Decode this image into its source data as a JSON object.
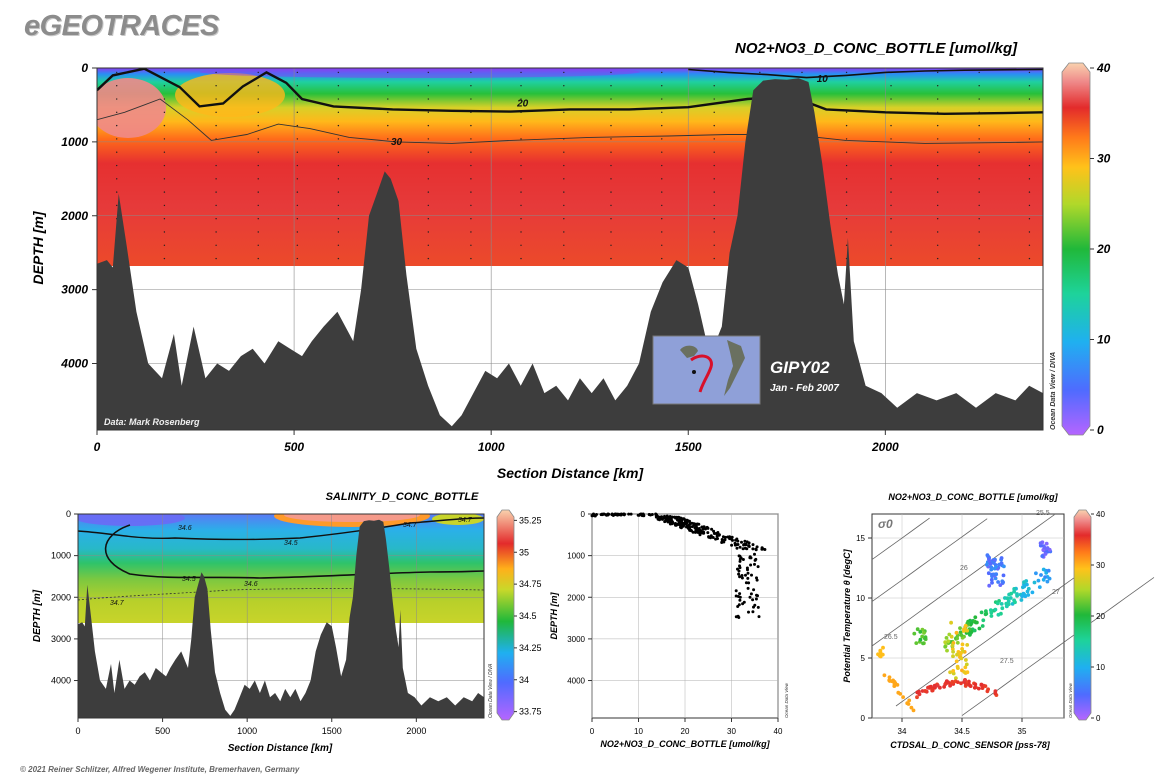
{
  "header": {
    "brand": "eGEOTRACES",
    "copyright": "© 2021 Reiner Schlitzer, Alfred Wegener Institute, Bremerhaven, Germany"
  },
  "chart_data": [
    {
      "id": "main-section",
      "type": "heatmap",
      "title": "NO2+NO3_D_CONC_BOTTLE [umol/kg]",
      "xlabel": "Section Distance [km]",
      "ylabel": "DEPTH [m]",
      "xlim": [
        0,
        2400
      ],
      "ylim": [
        4900,
        0
      ],
      "xticks": [
        "0",
        "500",
        "1000",
        "1500",
        "2000"
      ],
      "yticks": [
        "0",
        "1000",
        "2000",
        "3000",
        "4000"
      ],
      "colorbar": {
        "ticks": [
          "0",
          "10",
          "20",
          "30",
          "40"
        ],
        "range": [
          0,
          40
        ]
      },
      "contours": [
        {
          "level": "10",
          "label_x": 1840
        },
        {
          "level": "20",
          "label_x": 1080
        },
        {
          "level": "30",
          "label_x": 760
        }
      ],
      "credit": "Data: Mark Rosenberg",
      "watermark": "Ocean Data View / DIVA",
      "inset": {
        "name": "GIPY02",
        "dates": "Jan - Feb 2007"
      },
      "sampling_max_depth": 2700,
      "bathymetry": [
        [
          0,
          2650
        ],
        [
          25,
          2600
        ],
        [
          40,
          2700
        ],
        [
          55,
          1700
        ],
        [
          75,
          2400
        ],
        [
          100,
          3300
        ],
        [
          130,
          4000
        ],
        [
          165,
          4200
        ],
        [
          195,
          3600
        ],
        [
          215,
          4300
        ],
        [
          245,
          3500
        ],
        [
          275,
          4200
        ],
        [
          305,
          4000
        ],
        [
          335,
          4100
        ],
        [
          365,
          3900
        ],
        [
          395,
          3800
        ],
        [
          425,
          4000
        ],
        [
          460,
          3700
        ],
        [
          490,
          3800
        ],
        [
          520,
          3900
        ],
        [
          545,
          3700
        ],
        [
          575,
          3500
        ],
        [
          610,
          3300
        ],
        [
          650,
          3700
        ],
        [
          670,
          3000
        ],
        [
          690,
          2000
        ],
        [
          710,
          1700
        ],
        [
          730,
          1400
        ],
        [
          745,
          1500
        ],
        [
          765,
          1800
        ],
        [
          785,
          2800
        ],
        [
          810,
          3800
        ],
        [
          840,
          4300
        ],
        [
          870,
          4700
        ],
        [
          900,
          4850
        ],
        [
          925,
          4700
        ],
        [
          955,
          4400
        ],
        [
          985,
          4100
        ],
        [
          1015,
          4200
        ],
        [
          1045,
          4000
        ],
        [
          1075,
          4300
        ],
        [
          1105,
          4000
        ],
        [
          1135,
          4400
        ],
        [
          1165,
          4300
        ],
        [
          1195,
          4500
        ],
        [
          1225,
          4200
        ],
        [
          1255,
          4400
        ],
        [
          1285,
          4200
        ],
        [
          1315,
          4500
        ],
        [
          1345,
          4300
        ],
        [
          1375,
          4000
        ],
        [
          1405,
          3300
        ],
        [
          1435,
          2900
        ],
        [
          1470,
          2600
        ],
        [
          1500,
          2700
        ],
        [
          1525,
          3200
        ],
        [
          1555,
          3900
        ],
        [
          1585,
          3500
        ],
        [
          1605,
          2500
        ],
        [
          1625,
          2000
        ],
        [
          1645,
          1000
        ],
        [
          1665,
          300
        ],
        [
          1690,
          170
        ],
        [
          1720,
          150
        ],
        [
          1750,
          160
        ],
        [
          1780,
          140
        ],
        [
          1805,
          190
        ],
        [
          1820,
          600
        ],
        [
          1840,
          1300
        ],
        [
          1860,
          2100
        ],
        [
          1880,
          2800
        ],
        [
          1895,
          3200
        ],
        [
          1905,
          2300
        ],
        [
          1920,
          3700
        ],
        [
          1950,
          4300
        ],
        [
          1990,
          4400
        ],
        [
          2030,
          4600
        ],
        [
          2080,
          4400
        ],
        [
          2130,
          4500
        ],
        [
          2180,
          4400
        ],
        [
          2230,
          4600
        ],
        [
          2280,
          4400
        ],
        [
          2330,
          4500
        ],
        [
          2365,
          4300
        ],
        [
          2400,
          4400
        ]
      ]
    },
    {
      "id": "salinity-section",
      "type": "heatmap",
      "title": "SALINITY_D_CONC_BOTTLE",
      "xlabel": "Section Distance [km]",
      "ylabel": "DEPTH [m]",
      "xlim": [
        0,
        2400
      ],
      "ylim": [
        4900,
        0
      ],
      "xticks": [
        "0",
        "500",
        "1000",
        "1500",
        "2000"
      ],
      "yticks": [
        "0",
        "1000",
        "2000",
        "3000",
        "4000"
      ],
      "colorbar": {
        "ticks": [
          "33.75",
          "34",
          "34.25",
          "34.5",
          "34.75",
          "35",
          "35.25"
        ],
        "range": [
          33.7,
          35.3
        ]
      },
      "contour_labels": [
        "34.6",
        "34.7",
        "34.5",
        "34.7",
        "34.5",
        "34.6",
        "34.7"
      ],
      "watermark": "Ocean Data View / DIVA"
    },
    {
      "id": "profile",
      "type": "scatter",
      "xlabel": "NO2+NO3_D_CONC_BOTTLE [umol/kg]",
      "ylabel": "DEPTH [m]",
      "xlim": [
        0,
        40
      ],
      "ylim": [
        4900,
        0
      ],
      "xticks": [
        "0",
        "10",
        "20",
        "30",
        "40"
      ],
      "yticks": [
        "0",
        "1000",
        "2000",
        "3000",
        "4000"
      ],
      "watermark": "Ocean Data View"
    },
    {
      "id": "ts-diagram",
      "type": "scatter",
      "title": "NO2+NO3_D_CONC_BOTTLE [umol/kg]",
      "xlabel": "CTDSAL_D_CONC_SENSOR [pss-78]",
      "ylabel": "Potential Temperature θ [degC]",
      "xlim": [
        33.75,
        35.35
      ],
      "ylim": [
        0,
        17
      ],
      "xticks": [
        {
          "v": 34,
          "t": "34"
        },
        {
          "v": 34.5,
          "t": "34.5"
        },
        {
          "v": 35,
          "t": "35"
        }
      ],
      "yticks": [
        {
          "v": 0,
          "t": "0"
        },
        {
          "v": 5,
          "t": "5"
        },
        {
          "v": 10,
          "t": "10"
        },
        {
          "v": 15,
          "t": "15"
        }
      ],
      "isopycnal_symbol": "σ0",
      "isopycnal_labels": [
        "25.5",
        "26",
        "26.5",
        "27",
        "27.5"
      ],
      "colorbar": {
        "ticks": [
          "0",
          "10",
          "20",
          "30",
          "40"
        ],
        "range": [
          0,
          40
        ]
      },
      "watermark": "Ocean Data View"
    }
  ]
}
